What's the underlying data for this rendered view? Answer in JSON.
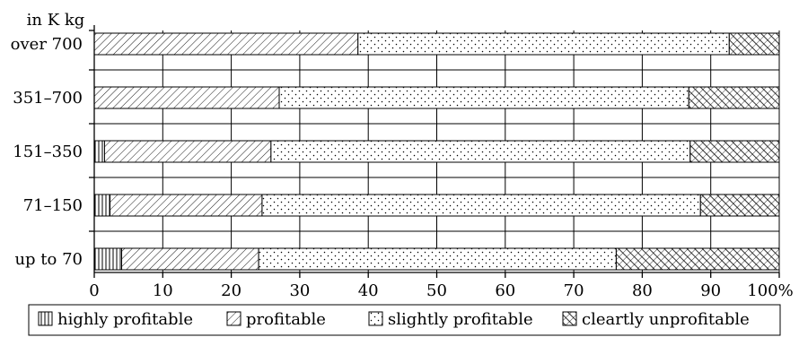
{
  "chart_data": {
    "type": "bar",
    "orientation": "horizontal",
    "stacked": true,
    "axis_title": "in K kg",
    "categories": [
      "over 700",
      "351–700",
      "151–350",
      "71–150",
      "up to 70"
    ],
    "series": [
      {
        "name": "highly profitable",
        "pattern": "vertical-lines",
        "values": [
          0,
          0,
          1.5,
          2.3,
          4.0
        ]
      },
      {
        "name": "profitable",
        "pattern": "diagonal-lines",
        "values": [
          38.5,
          27.0,
          24.3,
          22.2,
          20.0
        ]
      },
      {
        "name": "slightly profitable",
        "pattern": "dots",
        "values": [
          54.2,
          59.8,
          61.2,
          64.0,
          52.2
        ]
      },
      {
        "name": "cleartly unprofitable",
        "pattern": "crosshatch",
        "values": [
          7.3,
          13.2,
          13.0,
          11.5,
          23.8
        ]
      }
    ],
    "xlim": [
      0,
      100
    ],
    "xticks": [
      "0",
      "10",
      "20",
      "30",
      "40",
      "50",
      "60",
      "70",
      "80",
      "90",
      "100%"
    ],
    "grid": "vertical-major",
    "legend": "bottom"
  }
}
